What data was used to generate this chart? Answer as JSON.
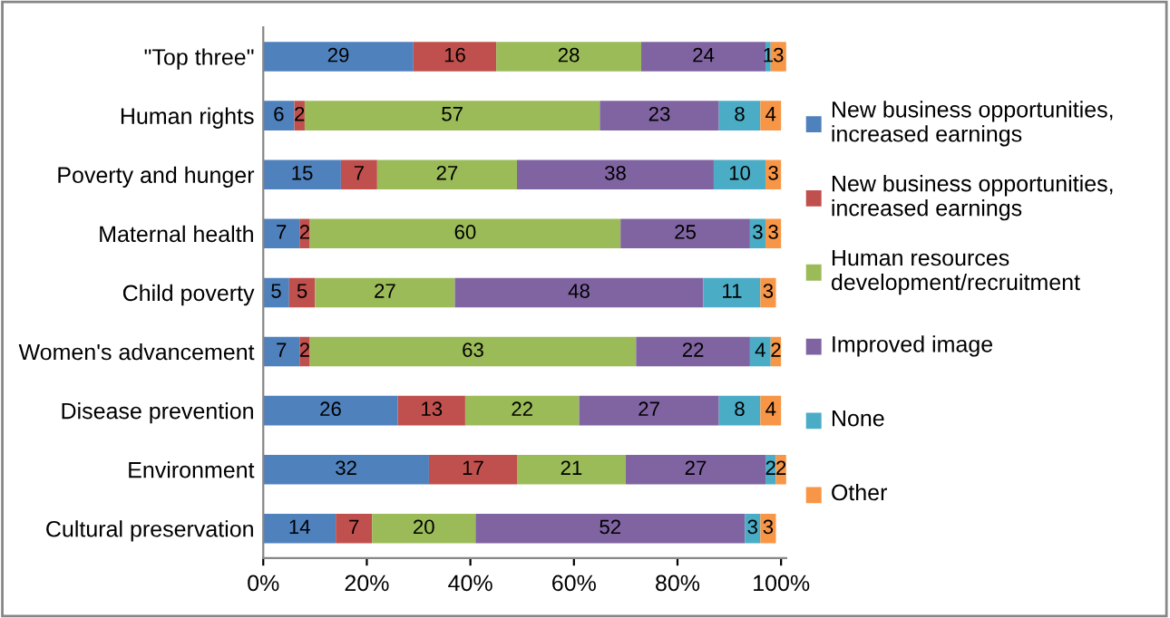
{
  "chart_data": {
    "type": "bar",
    "orientation": "horizontal",
    "stacked": true,
    "data_labels": true,
    "legend": "right",
    "grid": false,
    "categories": [
      "\"Top three\"",
      "Human rights",
      "Poverty and hunger",
      "Maternal health",
      "Child poverty",
      "Women's advancement",
      "Disease prevention",
      "Environment",
      "Cultural preservation"
    ],
    "xlim": [
      0,
      101
    ],
    "xticks": [
      {
        "value": 0,
        "label": "0%"
      },
      {
        "value": 20,
        "label": "20%"
      },
      {
        "value": 40,
        "label": "40%"
      },
      {
        "value": 60,
        "label": "60%"
      },
      {
        "value": 80,
        "label": "80%"
      },
      {
        "value": 100,
        "label": "100%"
      }
    ],
    "series": [
      {
        "name": "New business opportunities, increased earnings",
        "color": "#4f81bd",
        "values": [
          29,
          6,
          15,
          7,
          5,
          7,
          26,
          32,
          14
        ]
      },
      {
        "name": "New business opportunities, increased earnings",
        "color": "#c0504d",
        "values": [
          16,
          2,
          7,
          2,
          5,
          2,
          13,
          17,
          7
        ]
      },
      {
        "name": "Human resources development/recruitment",
        "color": "#9bbb59",
        "values": [
          28,
          57,
          27,
          60,
          27,
          63,
          22,
          21,
          20
        ]
      },
      {
        "name": "Improved image",
        "color": "#8064a2",
        "values": [
          24,
          23,
          38,
          25,
          48,
          22,
          27,
          27,
          52
        ]
      },
      {
        "name": "None",
        "color": "#4bacc6",
        "values": [
          1,
          8,
          10,
          3,
          11,
          4,
          8,
          2,
          3
        ]
      },
      {
        "name": "Other",
        "color": "#f79646",
        "values": [
          3,
          4,
          3,
          3,
          3,
          2,
          4,
          2,
          3
        ]
      }
    ]
  }
}
